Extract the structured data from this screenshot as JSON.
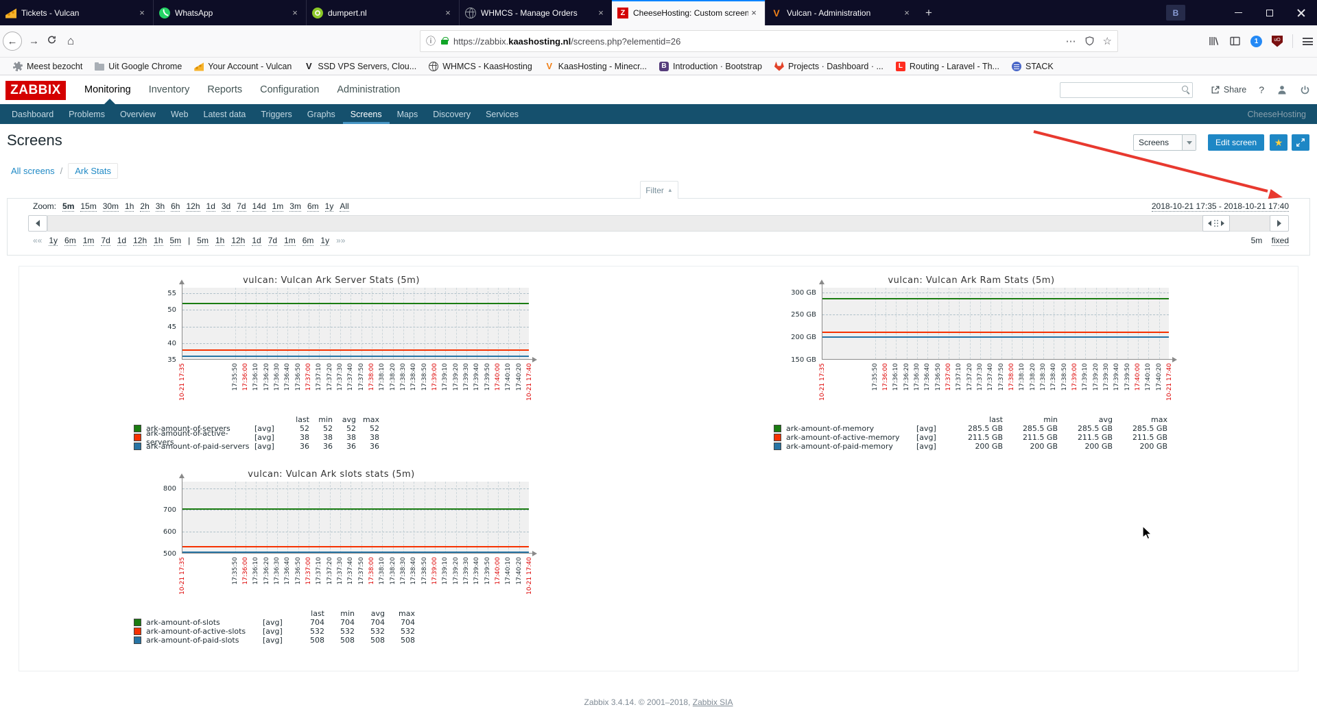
{
  "browser": {
    "tabs": [
      {
        "title": "Tickets - Vulcan",
        "icon": "cheese-icon",
        "active": false
      },
      {
        "title": "WhatsApp",
        "icon": "whatsapp-icon",
        "active": false
      },
      {
        "title": "dumpert.nl",
        "icon": "dumpert-icon",
        "active": false
      },
      {
        "title": "WHMCS - Manage Orders",
        "icon": "globe-icon",
        "active": false
      },
      {
        "title": "CheeseHosting: Custom screen",
        "icon": "zabbix-icon",
        "active": true
      },
      {
        "title": "Vulcan - Administration",
        "icon": "vulcan-icon",
        "active": false
      }
    ],
    "close_glyph": "×",
    "new_tab_glyph": "+",
    "window_badge": "B",
    "url": {
      "info_glyph": "ⓘ",
      "prefix": "https://zabbix.",
      "domain": "kaashosting.nl",
      "path": "/screens.php?elementid=26",
      "more_glyph": "⋯",
      "star_glyph": "☆"
    },
    "nav_glyphs": {
      "back": "←",
      "forward": "→",
      "home": "⌂"
    },
    "bookmarks": [
      {
        "label": "Meest bezocht",
        "icon": "gear-icon"
      },
      {
        "label": "Uit Google Chrome",
        "icon": "folder-icon"
      },
      {
        "label": "Your Account - Vulcan",
        "icon": "cheese-icon"
      },
      {
        "label": "SSD VPS Servers, Clou...",
        "icon": "transip-icon"
      },
      {
        "label": "WHMCS - KaasHosting",
        "icon": "globe-icon"
      },
      {
        "label": "KaasHosting - Minecr...",
        "icon": "vulcan-icon"
      },
      {
        "label": "Introduction · Bootstrap",
        "icon": "bootstrap-icon"
      },
      {
        "label": "Projects · Dashboard · ...",
        "icon": "gitlab-icon"
      },
      {
        "label": "Routing - Laravel - Th...",
        "icon": "laravel-icon"
      },
      {
        "label": "STACK",
        "icon": "stack-icon"
      }
    ]
  },
  "zabbix": {
    "logo": "ZABBIX",
    "main_nav": [
      {
        "label": "Monitoring",
        "active": true
      },
      {
        "label": "Inventory",
        "active": false
      },
      {
        "label": "Reports",
        "active": false
      },
      {
        "label": "Configuration",
        "active": false
      },
      {
        "label": "Administration",
        "active": false
      }
    ],
    "sub_nav": [
      {
        "label": "Dashboard",
        "active": false
      },
      {
        "label": "Problems",
        "active": false
      },
      {
        "label": "Overview",
        "active": false
      },
      {
        "label": "Web",
        "active": false
      },
      {
        "label": "Latest data",
        "active": false
      },
      {
        "label": "Triggers",
        "active": false
      },
      {
        "label": "Graphs",
        "active": false
      },
      {
        "label": "Screens",
        "active": true
      },
      {
        "label": "Maps",
        "active": false
      },
      {
        "label": "Discovery",
        "active": false
      },
      {
        "label": "Services",
        "active": false
      }
    ],
    "host_label": "CheeseHosting",
    "header": {
      "share_label": "Share",
      "help_glyph": "?"
    },
    "page_title": "Screens",
    "toolbar": {
      "select_value": "Screens",
      "edit_button": "Edit screen",
      "star_glyph": "★"
    },
    "breadcrumb": {
      "root": "All screens",
      "separator": "/",
      "current": "Ark Stats"
    },
    "filter": {
      "tab_label": "Filter",
      "collapse_glyph": "▲",
      "zoom_label": "Zoom:",
      "zoom_links": [
        "5m",
        "15m",
        "30m",
        "1h",
        "2h",
        "3h",
        "6h",
        "12h",
        "1d",
        "3d",
        "7d",
        "14d",
        "1m",
        "3m",
        "6m",
        "1y",
        "All"
      ],
      "active_zoom": "5m",
      "date_range": "2018-10-21 17:35 - 2018-10-21 17:40",
      "nav_links": [
        "««",
        "1y",
        "6m",
        "1m",
        "7d",
        "1d",
        "12h",
        "1h",
        "5m",
        "|",
        "5m",
        "1h",
        "12h",
        "1d",
        "7d",
        "1m",
        "6m",
        "1y",
        "»»"
      ],
      "window_label": "5m",
      "fixed_label": "fixed"
    },
    "footer": {
      "text": "Zabbix 3.4.14. © 2001–2018,",
      "link": "Zabbix SIA"
    }
  },
  "chart_data": [
    {
      "type": "line",
      "title": "vulcan: Vulcan Ark Server Stats (5m)",
      "ylim": [
        35,
        56.7
      ],
      "grid": true,
      "legend_position": "bottom",
      "yticks": [
        {
          "v": 55,
          "label": "55"
        },
        {
          "v": 50,
          "label": "50"
        },
        {
          "v": 45,
          "label": "45"
        },
        {
          "v": 40,
          "label": "40"
        },
        {
          "v": 35,
          "label": "35"
        }
      ],
      "x_labels": [
        "10-21 17:35",
        "17:35:50",
        "17:36:00",
        "17:36:10",
        "17:36:20",
        "17:36:30",
        "17:36:40",
        "17:36:50",
        "17:37:00",
        "17:37:10",
        "17:37:20",
        "17:37:30",
        "17:37:40",
        "17:37:50",
        "17:38:00",
        "17:38:10",
        "17:38:20",
        "17:38:30",
        "17:38:40",
        "17:38:50",
        "17:39:00",
        "17:39:10",
        "17:39:20",
        "17:39:30",
        "17:39:40",
        "17:39:50",
        "17:40:00",
        "17:40:10",
        "17:40:20",
        "10-21 17:40"
      ],
      "legend_headers": [
        "last",
        "min",
        "avg",
        "max"
      ],
      "series": [
        {
          "name": "ark-amount-of-servers",
          "color": "#1A7C11",
          "func": "[avg]",
          "value": 52,
          "stats": [
            "52",
            "52",
            "52",
            "52"
          ]
        },
        {
          "name": "ark-amount-of-active-servers",
          "color": "#F63100",
          "func": "[avg]",
          "value": 38,
          "stats": [
            "38",
            "38",
            "38",
            "38"
          ]
        },
        {
          "name": "ark-amount-of-paid-servers",
          "color": "#2774A4",
          "func": "[avg]",
          "value": 36,
          "stats": [
            "36",
            "36",
            "36",
            "36"
          ]
        }
      ]
    },
    {
      "type": "line",
      "title": "vulcan: Vulcan Ark Ram Stats (5m)",
      "ylim": [
        150,
        310
      ],
      "grid": true,
      "legend_position": "bottom",
      "yticks": [
        {
          "v": 300,
          "label": "300 GB"
        },
        {
          "v": 250,
          "label": "250 GB"
        },
        {
          "v": 200,
          "label": "200 GB"
        },
        {
          "v": 150,
          "label": "150 GB"
        }
      ],
      "x_labels": [
        "10-21 17:35",
        "17:35:50",
        "17:36:00",
        "17:36:10",
        "17:36:20",
        "17:36:30",
        "17:36:40",
        "17:36:50",
        "17:37:00",
        "17:37:10",
        "17:37:20",
        "17:37:30",
        "17:37:40",
        "17:37:50",
        "17:38:00",
        "17:38:10",
        "17:38:20",
        "17:38:30",
        "17:38:40",
        "17:38:50",
        "17:39:00",
        "17:39:10",
        "17:39:20",
        "17:39:30",
        "17:39:40",
        "17:39:50",
        "17:40:00",
        "17:40:10",
        "17:40:20",
        "10-21 17:40"
      ],
      "legend_headers": [
        "last",
        "min",
        "avg",
        "max"
      ],
      "series": [
        {
          "name": "ark-amount-of-memory",
          "color": "#1A7C11",
          "func": "[avg]",
          "value": 285.5,
          "stats": [
            "285.5 GB",
            "285.5 GB",
            "285.5 GB",
            "285.5 GB"
          ]
        },
        {
          "name": "ark-amount-of-active-memory",
          "color": "#F63100",
          "func": "[avg]",
          "value": 211.5,
          "stats": [
            "211.5 GB",
            "211.5 GB",
            "211.5 GB",
            "211.5 GB"
          ]
        },
        {
          "name": "ark-amount-of-paid-memory",
          "color": "#2774A4",
          "func": "[avg]",
          "value": 200,
          "stats": [
            "200 GB",
            "200 GB",
            "200 GB",
            "200 GB"
          ]
        }
      ]
    },
    {
      "type": "line",
      "title": "vulcan: Vulcan Ark slots stats (5m)",
      "ylim": [
        500,
        830
      ],
      "grid": true,
      "legend_position": "bottom",
      "yticks": [
        {
          "v": 800,
          "label": "800"
        },
        {
          "v": 700,
          "label": "700"
        },
        {
          "v": 600,
          "label": "600"
        },
        {
          "v": 500,
          "label": "500"
        }
      ],
      "x_labels": [
        "10-21 17:35",
        "17:35:50",
        "17:36:00",
        "17:36:10",
        "17:36:20",
        "17:36:30",
        "17:36:40",
        "17:36:50",
        "17:37:00",
        "17:37:10",
        "17:37:20",
        "17:37:30",
        "17:37:40",
        "17:37:50",
        "17:38:00",
        "17:38:10",
        "17:38:20",
        "17:38:30",
        "17:38:40",
        "17:38:50",
        "17:39:00",
        "17:39:10",
        "17:39:20",
        "17:39:30",
        "17:39:40",
        "17:39:50",
        "17:40:00",
        "17:40:10",
        "17:40:20",
        "10-21 17:40"
      ],
      "legend_headers": [
        "last",
        "min",
        "avg",
        "max"
      ],
      "series": [
        {
          "name": "ark-amount-of-slots",
          "color": "#1A7C11",
          "func": "[avg]",
          "value": 704,
          "stats": [
            "704",
            "704",
            "704",
            "704"
          ]
        },
        {
          "name": "ark-amount-of-active-slots",
          "color": "#F63100",
          "func": "[avg]",
          "value": 532,
          "stats": [
            "532",
            "532",
            "532",
            "532"
          ]
        },
        {
          "name": "ark-amount-of-paid-slots",
          "color": "#2774A4",
          "func": "[avg]",
          "value": 508,
          "stats": [
            "508",
            "508",
            "508",
            "508"
          ]
        }
      ]
    }
  ]
}
